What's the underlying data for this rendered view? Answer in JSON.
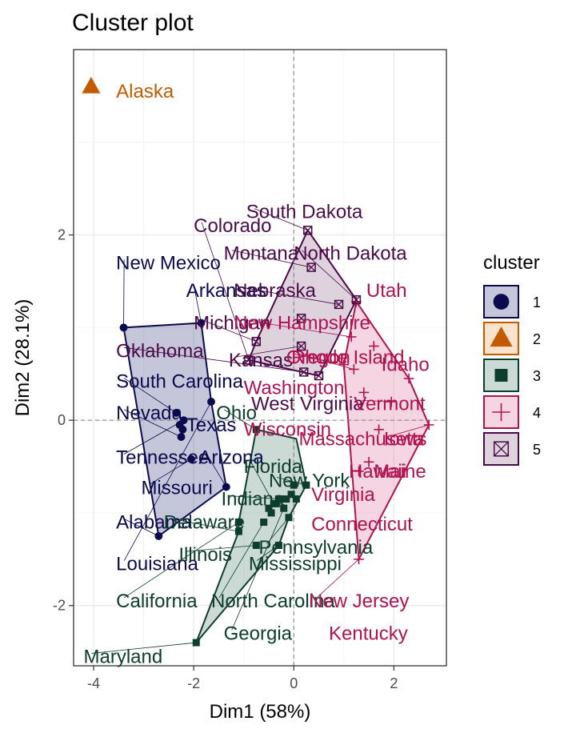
{
  "chart_data": {
    "type": "scatter",
    "title": "Cluster plot",
    "xlabel": "Dim1 (58%)",
    "ylabel": "Dim2 (28.1%)",
    "xlim": [
      -4.4,
      3.05
    ],
    "ylim": [
      -2.65,
      4.0
    ],
    "x_ticks": [
      -4,
      -2,
      0,
      2
    ],
    "y_ticks": [
      -2,
      0,
      2
    ],
    "x_tick_labels": [
      "-4",
      "-2",
      "0",
      "2"
    ],
    "y_tick_labels": [
      "-2",
      "0",
      "2"
    ],
    "grid": true,
    "legend_position": "right",
    "legend_title": "cluster",
    "clusters": [
      {
        "name": "1",
        "color": "#0b0a4f",
        "fill": "#1b1a6b",
        "shape": "circle",
        "points": [
          {
            "label": "New Mexico",
            "x": -3.4,
            "y": 1.0
          },
          {
            "label": "Arkansas",
            "x": -1.85,
            "y": 1.05
          },
          {
            "label": "South Carolina",
            "x": -2.35,
            "y": 0.08
          },
          {
            "label": "Nevada",
            "x": -2.25,
            "y": -0.18
          },
          {
            "label": "Tennessee",
            "x": -2.2,
            "y": 0.0
          },
          {
            "label": "Texas",
            "x": -2.28,
            "y": -0.05
          },
          {
            "label": "Missouri",
            "x": -2.05,
            "y": -0.42
          },
          {
            "label": "Alabama",
            "x": -2.7,
            "y": -1.25
          },
          {
            "label": "Louisiana",
            "x": -1.65,
            "y": 0.2
          },
          {
            "label": "Arizona",
            "x": -1.35,
            "y": -0.72
          },
          {
            "label": "Oklahoma",
            "x": -2.22,
            "y": -0.1
          }
        ]
      },
      {
        "name": "2",
        "color": "#c45a00",
        "fill": "#e8913a",
        "shape": "triangle",
        "points": [
          {
            "label": "Alaska",
            "x": -4.05,
            "y": 3.6
          }
        ]
      },
      {
        "name": "3",
        "color": "#0d3d2c",
        "fill": "#2e6b56",
        "shape": "square",
        "points": [
          {
            "label": "Maryland",
            "x": -1.95,
            "y": -2.4
          },
          {
            "label": "Delaware",
            "x": -1.1,
            "y": -1.2
          },
          {
            "label": "Illinois",
            "x": -0.75,
            "y": -1.35
          },
          {
            "label": "California",
            "x": -1.1,
            "y": -1.1
          },
          {
            "label": "Ohio",
            "x": -0.75,
            "y": -0.1
          },
          {
            "label": "Florida",
            "x": -0.4,
            "y": -0.9
          },
          {
            "label": "Indiana",
            "x": -0.3,
            "y": -0.85
          },
          {
            "label": "New York",
            "x": 0.25,
            "y": -0.7
          },
          {
            "label": "Pennsylvania",
            "x": -0.1,
            "y": -1.05
          },
          {
            "label": "Mississippi",
            "x": -0.3,
            "y": -1.35
          },
          {
            "label": "North Carolina",
            "x": -0.6,
            "y": -1.1
          },
          {
            "label": "Georgia",
            "x": -0.2,
            "y": -0.95
          },
          {
            "label": "Michigan",
            "x": 0.0,
            "y": -0.7
          },
          {
            "label": "Colorado",
            "x": -0.25,
            "y": -0.85
          },
          {
            "label": "Washington",
            "x": -0.35,
            "y": -0.9
          },
          {
            "label": "Virginia",
            "x": -0.05,
            "y": -0.8
          },
          {
            "label": "Massachusetts",
            "x": -0.5,
            "y": -0.95
          },
          {
            "label": "Connecticut",
            "x": -0.45,
            "y": -1.0
          },
          {
            "label": "Kentucky",
            "x": -0.15,
            "y": -0.85
          },
          {
            "label": "Wisconsin",
            "x": 0.05,
            "y": -0.85
          }
        ]
      },
      {
        "name": "4",
        "color": "#b0124f",
        "fill": "#d6568a",
        "shape": "plus",
        "points": [
          {
            "label": "Utah",
            "x": 1.25,
            "y": 1.28
          },
          {
            "label": "New Hampshire",
            "x": 1.15,
            "y": 0.9
          },
          {
            "label": "Rhode Island",
            "x": 1.2,
            "y": 0.55
          },
          {
            "label": "Idaho",
            "x": 2.3,
            "y": 0.45
          },
          {
            "label": "Vermont",
            "x": 1.95,
            "y": 0.2
          },
          {
            "label": "Iowa",
            "x": 2.7,
            "y": -0.05
          },
          {
            "label": "Hawaii",
            "x": 1.5,
            "y": -0.45
          },
          {
            "label": "Maine",
            "x": 1.3,
            "y": -0.55
          },
          {
            "label": "New Jersey",
            "x": 1.3,
            "y": -1.5
          },
          {
            "label": "Oregon",
            "x": 1.0,
            "y": 0.6
          },
          {
            "label": "West Virginia",
            "x": 1.7,
            "y": -0.1
          },
          {
            "label": "Wyoming",
            "x": 1.6,
            "y": 0.8
          },
          {
            "label": "Minnesota",
            "x": 1.4,
            "y": 0.3
          }
        ]
      },
      {
        "name": "5",
        "color": "#4a0b48",
        "fill": "#7a4d78",
        "shape": "squarecross",
        "points": [
          {
            "label": "South Dakota",
            "x": 0.28,
            "y": 2.05
          },
          {
            "label": "Montana",
            "x": 0.35,
            "y": 1.65
          },
          {
            "label": "North Dakota",
            "x": 1.25,
            "y": 1.3
          },
          {
            "label": "Nebraska",
            "x": 0.9,
            "y": 1.25
          },
          {
            "label": "Kansas",
            "x": 0.15,
            "y": 0.8
          },
          {
            "label": "Michigan",
            "x": -0.75,
            "y": 0.85
          },
          {
            "label": "Colorado",
            "x": -0.9,
            "y": 0.65
          },
          {
            "label": "Oklahoma",
            "x": 0.2,
            "y": 0.52
          },
          {
            "label": "Washington",
            "x": 0.5,
            "y": 0.48
          },
          {
            "label": "Oregon",
            "x": 0.15,
            "y": 1.1
          }
        ]
      }
    ],
    "labels": [
      {
        "text": "Alaska",
        "x": -3.55,
        "y": 3.55,
        "cluster": "2"
      },
      {
        "text": "New Mexico",
        "x": -3.55,
        "y": 1.7,
        "cluster": "1"
      },
      {
        "text": "Arkansas",
        "x": -2.15,
        "y": 1.4,
        "cluster": "1"
      },
      {
        "text": "Oklahoma",
        "x": -3.55,
        "y": 0.75,
        "cluster": "5"
      },
      {
        "text": "South Carolina",
        "x": -3.55,
        "y": 0.42,
        "cluster": "1"
      },
      {
        "text": "Nevada",
        "x": -3.55,
        "y": 0.08,
        "cluster": "1"
      },
      {
        "text": "Texas",
        "x": -2.15,
        "y": -0.05,
        "cluster": "1"
      },
      {
        "text": "Tennessee",
        "x": -3.55,
        "y": -0.4,
        "cluster": "1"
      },
      {
        "text": "Arizona",
        "x": -1.9,
        "y": -0.4,
        "cluster": "1"
      },
      {
        "text": "Missouri",
        "x": -3.05,
        "y": -0.73,
        "cluster": "1"
      },
      {
        "text": "Alabama",
        "x": -3.55,
        "y": -1.1,
        "cluster": "1"
      },
      {
        "text": "Louisiana",
        "x": -3.55,
        "y": -1.55,
        "cluster": "1"
      },
      {
        "text": "Colorado",
        "x": -2.0,
        "y": 2.1,
        "cluster": "5"
      },
      {
        "text": "South Dakota",
        "x": -0.95,
        "y": 2.25,
        "cluster": "5"
      },
      {
        "text": "Montana",
        "x": -1.4,
        "y": 1.8,
        "cluster": "5"
      },
      {
        "text": "North Dakota",
        "x": 0.0,
        "y": 1.8,
        "cluster": "5"
      },
      {
        "text": "Nebraska",
        "x": -1.2,
        "y": 1.4,
        "cluster": "5"
      },
      {
        "text": "Utah",
        "x": 1.45,
        "y": 1.4,
        "cluster": "4"
      },
      {
        "text": "Michigan",
        "x": -2.0,
        "y": 1.05,
        "cluster": "5"
      },
      {
        "text": "New Hampshire",
        "x": -1.2,
        "y": 1.05,
        "cluster": "4"
      },
      {
        "text": "Kansas",
        "x": -1.3,
        "y": 0.65,
        "cluster": "5"
      },
      {
        "text": "Oregon",
        "x": -0.15,
        "y": 0.68,
        "cluster": "4"
      },
      {
        "text": "Rhode Island",
        "x": -0.05,
        "y": 0.68,
        "cluster": "4"
      },
      {
        "text": "Idaho",
        "x": 1.75,
        "y": 0.6,
        "cluster": "4"
      },
      {
        "text": "Washington",
        "x": -1.0,
        "y": 0.35,
        "cluster": "4"
      },
      {
        "text": "West Virginia",
        "x": -0.85,
        "y": 0.18,
        "cluster": "5"
      },
      {
        "text": "Vermont",
        "x": 1.2,
        "y": 0.18,
        "cluster": "4"
      },
      {
        "text": "Ohio",
        "x": -1.55,
        "y": 0.08,
        "cluster": "3"
      },
      {
        "text": "Wisconsin",
        "x": -1.0,
        "y": -0.1,
        "cluster": "4"
      },
      {
        "text": "Massachusetts",
        "x": 0.1,
        "y": -0.2,
        "cluster": "4"
      },
      {
        "text": "Iowa",
        "x": 1.8,
        "y": -0.2,
        "cluster": "4"
      },
      {
        "text": "Florida",
        "x": -1.0,
        "y": -0.5,
        "cluster": "3"
      },
      {
        "text": "New York",
        "x": -0.5,
        "y": -0.65,
        "cluster": "3"
      },
      {
        "text": "Hawaii",
        "x": 1.1,
        "y": -0.55,
        "cluster": "4"
      },
      {
        "text": "Maine",
        "x": 1.6,
        "y": -0.55,
        "cluster": "4"
      },
      {
        "text": "Indiana",
        "x": -1.45,
        "y": -0.85,
        "cluster": "3"
      },
      {
        "text": "Virginia",
        "x": 0.35,
        "y": -0.8,
        "cluster": "4"
      },
      {
        "text": "Delaware",
        "x": -2.6,
        "y": -1.1,
        "cluster": "3"
      },
      {
        "text": "Connecticut",
        "x": 0.35,
        "y": -1.12,
        "cluster": "4"
      },
      {
        "text": "Pennsylvania",
        "x": -0.7,
        "y": -1.37,
        "cluster": "3"
      },
      {
        "text": "Illinois",
        "x": -2.3,
        "y": -1.45,
        "cluster": "3"
      },
      {
        "text": "Mississippi",
        "x": -0.9,
        "y": -1.55,
        "cluster": "3"
      },
      {
        "text": "California",
        "x": -3.55,
        "y": -1.95,
        "cluster": "3"
      },
      {
        "text": "North Carolina",
        "x": -1.65,
        "y": -1.95,
        "cluster": "3"
      },
      {
        "text": "New Jersey",
        "x": 0.3,
        "y": -1.95,
        "cluster": "4"
      },
      {
        "text": "Georgia",
        "x": -1.4,
        "y": -2.3,
        "cluster": "3"
      },
      {
        "text": "Kentucky",
        "x": 0.7,
        "y": -2.3,
        "cluster": "4"
      },
      {
        "text": "Maryland",
        "x": -4.2,
        "y": -2.55,
        "cluster": "3"
      }
    ],
    "hulls": {
      "1": [
        [
          -3.4,
          1.0
        ],
        [
          -1.85,
          1.05
        ],
        [
          -1.65,
          0.2
        ],
        [
          -1.35,
          -0.72
        ],
        [
          -2.7,
          -1.25
        ]
      ],
      "3": [
        [
          -0.75,
          -0.1
        ],
        [
          0.05,
          -0.2
        ],
        [
          0.25,
          -0.7
        ],
        [
          -0.1,
          -1.05
        ],
        [
          -0.3,
          -1.35
        ],
        [
          -1.95,
          -2.4
        ],
        [
          -1.1,
          -1.2
        ],
        [
          -1.1,
          -1.1
        ]
      ],
      "4": [
        [
          1.25,
          1.28
        ],
        [
          2.3,
          0.45
        ],
        [
          2.7,
          -0.05
        ],
        [
          1.3,
          -1.5
        ],
        [
          1.0,
          0.6
        ]
      ],
      "5": [
        [
          0.28,
          2.05
        ],
        [
          1.25,
          1.3
        ],
        [
          0.5,
          0.48
        ],
        [
          -0.9,
          0.65
        ],
        [
          -0.75,
          0.85
        ]
      ]
    }
  }
}
